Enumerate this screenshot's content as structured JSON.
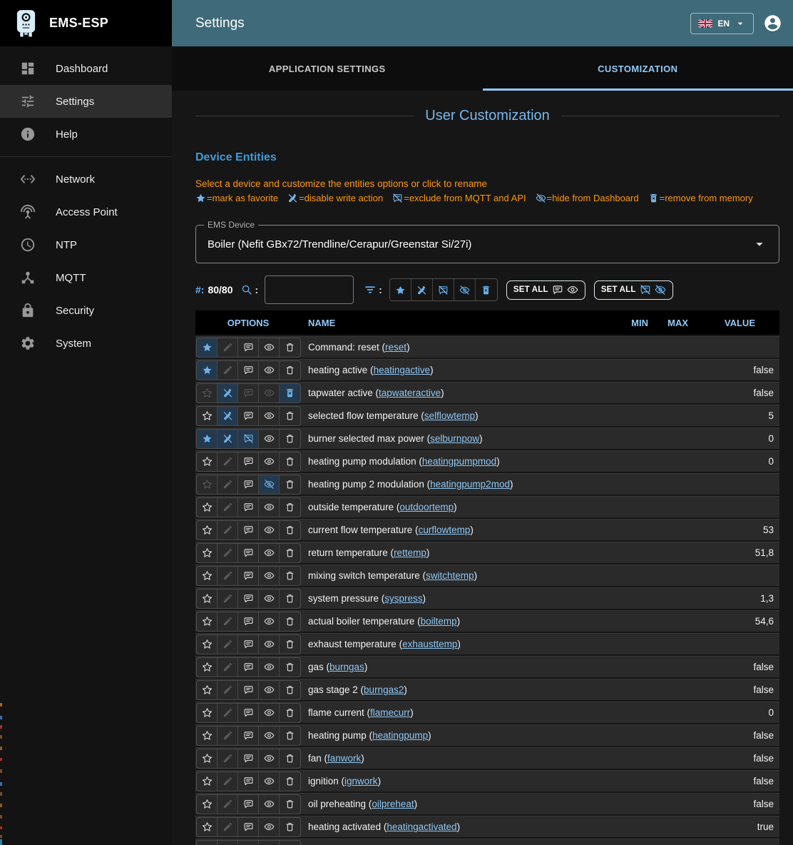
{
  "app": {
    "sidebar_title": "EMS-ESP",
    "topbar_title": "Settings",
    "language": "EN"
  },
  "sidebar": {
    "items": [
      {
        "label": "Dashboard",
        "icon": "dashboard-icon",
        "selected": false
      },
      {
        "label": "Settings",
        "icon": "tune-icon",
        "selected": true
      },
      {
        "label": "Help",
        "icon": "info-icon",
        "selected": false,
        "divider_after": true
      },
      {
        "label": "Network",
        "icon": "ethernet-icon",
        "selected": false
      },
      {
        "label": "Access Point",
        "icon": "antenna-icon",
        "selected": false
      },
      {
        "label": "NTP",
        "icon": "clock-icon",
        "selected": false
      },
      {
        "label": "MQTT",
        "icon": "hub-icon",
        "selected": false
      },
      {
        "label": "Security",
        "icon": "lock-icon",
        "selected": false
      },
      {
        "label": "System",
        "icon": "gear-icon",
        "selected": false
      }
    ]
  },
  "tabs": [
    {
      "label": "APPLICATION SETTINGS",
      "active": false
    },
    {
      "label": "CUSTOMIZATION",
      "active": true
    }
  ],
  "page": {
    "title": "User Customization",
    "section_title": "Device Entities",
    "hint": "Select a device and customize the entities options or click to rename",
    "legend": [
      {
        "icon": "star-filled",
        "name": "favorite-icon",
        "text": "=mark as favorite"
      },
      {
        "icon": "pencil-off",
        "name": "edit-off-icon",
        "text": "=disable write action"
      },
      {
        "icon": "comment-slash",
        "name": "comment-slash-icon",
        "text": "=exclude from MQTT and API"
      },
      {
        "icon": "eye-slash",
        "name": "eye-slash-icon",
        "text": "=hide from Dashboard"
      },
      {
        "icon": "trash-filled",
        "name": "trash-icon",
        "text": "=remove from memory"
      }
    ],
    "device_select": {
      "label": "EMS Device",
      "value": "Boiler (Nefit GBx72/Trendline/Cerapur/Greenstar Si/27i)"
    },
    "toolbar": {
      "count_prefix": "#:",
      "count": "80/80",
      "colon": ":",
      "search_value": "",
      "set_all_show_label": "SET ALL",
      "set_all_hide_label": "SET ALL"
    },
    "table": {
      "headers": [
        "OPTIONS",
        "NAME",
        "MIN",
        "MAX",
        "VALUE"
      ],
      "rows": [
        {
          "name": "Command: reset",
          "shortname": "reset",
          "min": "",
          "max": "",
          "value": "",
          "options": {
            "fav": "active",
            "edit": "dim",
            "mqtt": "normal",
            "dash": "normal",
            "mem": "normal"
          }
        },
        {
          "name": "heating active",
          "shortname": "heatingactive",
          "min": "",
          "max": "",
          "value": "false",
          "options": {
            "fav": "active",
            "edit": "dim",
            "mqtt": "normal",
            "dash": "normal",
            "mem": "normal"
          }
        },
        {
          "name": "tapwater active",
          "shortname": "tapwateractive",
          "min": "",
          "max": "",
          "value": "false",
          "options": {
            "fav": "dim",
            "edit": "active",
            "mqtt": "dim",
            "dash": "dim",
            "mem": "active"
          }
        },
        {
          "name": "selected flow temperature",
          "shortname": "selflowtemp",
          "min": "",
          "max": "",
          "value": "5",
          "options": {
            "fav": "normal",
            "edit": "active",
            "mqtt": "normal",
            "dash": "normal",
            "mem": "normal"
          }
        },
        {
          "name": "burner selected max power",
          "shortname": "selburnpow",
          "min": "",
          "max": "",
          "value": "0",
          "options": {
            "fav": "active",
            "edit": "active",
            "mqtt": "active",
            "dash": "normal",
            "mem": "normal"
          }
        },
        {
          "name": "heating pump modulation",
          "shortname": "heatingpumpmod",
          "min": "",
          "max": "",
          "value": "0",
          "options": {
            "fav": "normal",
            "edit": "dim",
            "mqtt": "normal",
            "dash": "normal",
            "mem": "normal"
          }
        },
        {
          "name": "heating pump 2 modulation",
          "shortname": "heatingpump2mod",
          "min": "",
          "max": "",
          "value": "",
          "options": {
            "fav": "dim",
            "edit": "dim",
            "mqtt": "normal",
            "dash": "active",
            "mem": "normal"
          }
        },
        {
          "name": "outside temperature",
          "shortname": "outdoortemp",
          "min": "",
          "max": "",
          "value": "",
          "options": {
            "fav": "normal",
            "edit": "dim",
            "mqtt": "normal",
            "dash": "normal",
            "mem": "normal"
          }
        },
        {
          "name": "current flow temperature",
          "shortname": "curflowtemp",
          "min": "",
          "max": "",
          "value": "53",
          "options": {
            "fav": "normal",
            "edit": "dim",
            "mqtt": "normal",
            "dash": "normal",
            "mem": "normal"
          }
        },
        {
          "name": "return temperature",
          "shortname": "rettemp",
          "min": "",
          "max": "",
          "value": "51,8",
          "options": {
            "fav": "normal",
            "edit": "dim",
            "mqtt": "normal",
            "dash": "normal",
            "mem": "normal"
          }
        },
        {
          "name": "mixing switch temperature",
          "shortname": "switchtemp",
          "min": "",
          "max": "",
          "value": "",
          "options": {
            "fav": "normal",
            "edit": "dim",
            "mqtt": "normal",
            "dash": "normal",
            "mem": "normal"
          }
        },
        {
          "name": "system pressure",
          "shortname": "syspress",
          "min": "",
          "max": "",
          "value": "1,3",
          "options": {
            "fav": "normal",
            "edit": "dim",
            "mqtt": "normal",
            "dash": "normal",
            "mem": "normal"
          }
        },
        {
          "name": "actual boiler temperature",
          "shortname": "boiltemp",
          "min": "",
          "max": "",
          "value": "54,6",
          "options": {
            "fav": "normal",
            "edit": "dim",
            "mqtt": "normal",
            "dash": "normal",
            "mem": "normal"
          }
        },
        {
          "name": "exhaust temperature",
          "shortname": "exhausttemp",
          "min": "",
          "max": "",
          "value": "",
          "options": {
            "fav": "normal",
            "edit": "dim",
            "mqtt": "normal",
            "dash": "normal",
            "mem": "normal"
          }
        },
        {
          "name": "gas",
          "shortname": "burngas",
          "min": "",
          "max": "",
          "value": "false",
          "options": {
            "fav": "normal",
            "edit": "dim",
            "mqtt": "normal",
            "dash": "normal",
            "mem": "normal"
          }
        },
        {
          "name": "gas stage 2",
          "shortname": "burngas2",
          "min": "",
          "max": "",
          "value": "false",
          "options": {
            "fav": "normal",
            "edit": "dim",
            "mqtt": "normal",
            "dash": "normal",
            "mem": "normal"
          }
        },
        {
          "name": "flame current",
          "shortname": "flamecurr",
          "min": "",
          "max": "",
          "value": "0",
          "options": {
            "fav": "normal",
            "edit": "dim",
            "mqtt": "normal",
            "dash": "normal",
            "mem": "normal"
          }
        },
        {
          "name": "heating pump",
          "shortname": "heatingpump",
          "min": "",
          "max": "",
          "value": "false",
          "options": {
            "fav": "normal",
            "edit": "dim",
            "mqtt": "normal",
            "dash": "normal",
            "mem": "normal"
          }
        },
        {
          "name": "fan",
          "shortname": "fanwork",
          "min": "",
          "max": "",
          "value": "false",
          "options": {
            "fav": "normal",
            "edit": "dim",
            "mqtt": "normal",
            "dash": "normal",
            "mem": "normal"
          }
        },
        {
          "name": "ignition",
          "shortname": "ignwork",
          "min": "",
          "max": "",
          "value": "false",
          "options": {
            "fav": "normal",
            "edit": "dim",
            "mqtt": "normal",
            "dash": "normal",
            "mem": "normal"
          }
        },
        {
          "name": "oil preheating",
          "shortname": "oilpreheat",
          "min": "",
          "max": "",
          "value": "false",
          "options": {
            "fav": "normal",
            "edit": "dim",
            "mqtt": "normal",
            "dash": "normal",
            "mem": "normal"
          }
        },
        {
          "name": "heating activated",
          "shortname": "heatingactivated",
          "min": "",
          "max": "",
          "value": "true",
          "options": {
            "fav": "normal",
            "edit": "dim",
            "mqtt": "normal",
            "dash": "normal",
            "mem": "normal"
          }
        }
      ],
      "partial_row_visible": true
    }
  }
}
